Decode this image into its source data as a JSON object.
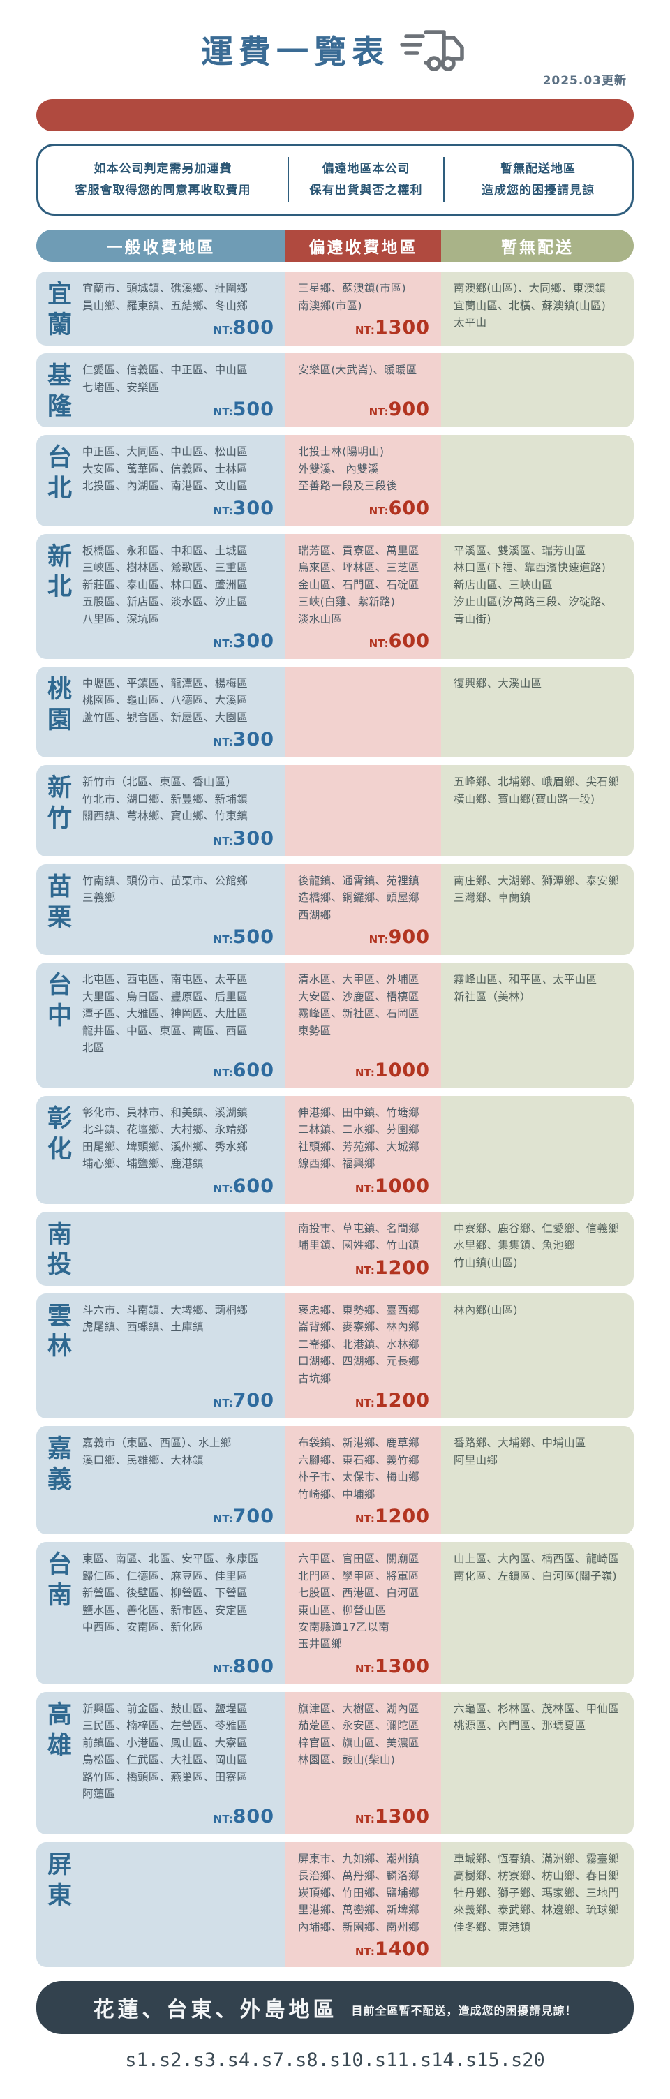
{
  "header": {
    "title": "運費一覽表",
    "updated": "2025.03更新",
    "truck_icon": "delivery-truck-icon"
  },
  "colors": {
    "title_blue": "#3a6b94",
    "divider_red": "#b04a3f",
    "band_general_blue": "#6f9cb5",
    "band_remote_red": "#b04a3f",
    "band_none_green": "#a9b388",
    "cell_general_bg": "#d2dfe8",
    "cell_remote_bg": "#f2d2cf",
    "cell_none_bg": "#dfe3d1",
    "price_blue": "#2e6b9e",
    "price_red": "#b23420",
    "footer_navy": "#33424e"
  },
  "notice": {
    "items": [
      {
        "line1": "如本公司判定需另加運費",
        "line2": "客服會取得您的同意再收取費用"
      },
      {
        "line1": "偏遠地區本公司",
        "line2": "保有出貨與否之權利"
      },
      {
        "line1": "暫無配送地區",
        "line2": "造成您的困擾請見諒"
      }
    ]
  },
  "table": {
    "columns": [
      {
        "label": "一般收費地區"
      },
      {
        "label": "偏遠收費地區"
      },
      {
        "label": "暫無配送"
      }
    ],
    "rows": [
      {
        "region": "宜蘭",
        "general": [
          "宜蘭市、頭城鎮、礁溪鄉、壯圍鄉",
          "員山鄉、羅東鎮、五結鄉、冬山鄉"
        ],
        "general_price": "800",
        "remote": [
          "三星鄉、蘇澳鎮(市區)",
          "南澳鄉(市區)"
        ],
        "remote_price": "1300",
        "no_delivery": [
          "南澳鄉(山區)、大同鄉、東澳鎮",
          "宜蘭山區、北橫、蘇澳鎮(山區)",
          "太平山"
        ]
      },
      {
        "region": "基隆",
        "general": [
          "仁愛區、信義區、中正區、中山區",
          "七堵區、安樂區"
        ],
        "general_price": "500",
        "remote": [
          "安樂區(大武崙)、暖暖區"
        ],
        "remote_price": "900",
        "no_delivery": []
      },
      {
        "region": "台北",
        "general": [
          "中正區、大同區、中山區、松山區",
          "大安區、萬華區、信義區、士林區",
          "北投區、內湖區、南港區、文山區"
        ],
        "general_price": "300",
        "remote": [
          "北投士林(陽明山)",
          "外雙溪、 內雙溪",
          "至善路一段及三段後"
        ],
        "remote_price": "600",
        "no_delivery": []
      },
      {
        "region": "新北",
        "general": [
          "板橋區、永和區、中和區、土城區",
          "三峽區、樹林區、鶯歌區、三重區",
          "新莊區、泰山區、林口區、蘆洲區",
          "五股區、新店區、淡水區、汐止區",
          "八里區、深坑區"
        ],
        "general_price": "300",
        "remote": [
          "瑞芳區、貢寮區、萬里區",
          "烏來區、坪林區、三芝區",
          "金山區、石門區、石碇區",
          "三峽(白雞、紫新路)",
          "淡水山區"
        ],
        "remote_price": "600",
        "no_delivery": [
          "平溪區、雙溪區、瑞芳山區",
          "林口區(下福、靠西濱快速道路)",
          "新店山區、三峽山區",
          "汐止山區(汐萬路三段、汐碇路、青山街)"
        ]
      },
      {
        "region": "桃園",
        "general": [
          "中壢區、平鎮區、龍潭區、楊梅區",
          "桃園區、龜山區、八德區、大溪區",
          "蘆竹區、觀音區、新屋區、大園區"
        ],
        "general_price": "300",
        "remote": [],
        "remote_price": null,
        "no_delivery": [
          "復興鄉、大溪山區"
        ]
      },
      {
        "region": "新竹",
        "general": [
          "新竹市（北區、東區、香山區）",
          "竹北市、湖口鄉、新豐鄉、新埔鎮",
          "關西鎮、芎林鄉、寶山鄉、竹東鎮"
        ],
        "general_price": "300",
        "remote": [],
        "remote_price": null,
        "no_delivery": [
          "五峰鄉、北埔鄉、峨眉鄉、尖石鄉",
          "橫山鄉、寶山鄉(寶山路一段)"
        ]
      },
      {
        "region": "苗栗",
        "general": [
          "竹南鎮、頭份市、苗栗市、公館鄉",
          "三義鄉"
        ],
        "general_price": "500",
        "remote": [
          "後龍鎮、通霄鎮、苑裡鎮",
          "造橋鄉、銅鑼鄉、頭屋鄉",
          "西湖鄉"
        ],
        "remote_price": "900",
        "no_delivery": [
          "南庄鄉、大湖鄉、獅潭鄉、泰安鄉",
          "三灣鄉、卓蘭鎮"
        ]
      },
      {
        "region": "台中",
        "general": [
          "北屯區、西屯區、南屯區、太平區",
          "大里區、烏日區、豐原區、后里區",
          "潭子區、大雅區、神岡區、大肚區",
          "龍井區、中區、東區、南區、西區",
          "北區"
        ],
        "general_price": "600",
        "remote": [
          "清水區、大甲區、外埔區",
          "大安區、沙鹿區、梧棲區",
          "霧峰區、新社區、石岡區",
          "東勢區"
        ],
        "remote_price": "1000",
        "no_delivery": [
          "霧峰山區、和平區、太平山區",
          "新社區（美林）"
        ]
      },
      {
        "region": "彰化",
        "general": [
          "彰化市、員林市、和美鎮、溪湖鎮",
          "北斗鎮、花壇鄉、大村鄉、永靖鄉",
          "田尾鄉、埤頭鄉、溪州鄉、秀水鄉",
          "埔心鄉、埔鹽鄉、鹿港鎮"
        ],
        "general_price": "600",
        "remote": [
          "伸港鄉、田中鎮、竹塘鄉",
          "二林鎮、二水鄉、芬園鄉",
          "社頭鄉、芳苑鄉、大城鄉",
          "線西鄉、福興鄉"
        ],
        "remote_price": "1000",
        "no_delivery": []
      },
      {
        "region": "南投",
        "general": [],
        "general_price": null,
        "remote": [
          "南投市、草屯鎮、名間鄉",
          "埔里鎮、國姓鄉、竹山鎮"
        ],
        "remote_price": "1200",
        "no_delivery": [
          "中寮鄉、鹿谷鄉、仁愛鄉、信義鄉",
          "水里鄉、集集鎮、魚池鄉",
          "竹山鎮(山區)"
        ]
      },
      {
        "region": "雲林",
        "general": [
          "斗六市、斗南鎮、大埤鄉、莿桐鄉",
          "虎尾鎮、西螺鎮、土庫鎮"
        ],
        "general_price": "700",
        "remote": [
          "褒忠鄉、東勢鄉、臺西鄉",
          "崙背鄉、麥寮鄉、林內鄉",
          "二崙鄉、北港鎮、水林鄉",
          "口湖鄉、四湖鄉、元長鄉",
          "古坑鄉"
        ],
        "remote_price": "1200",
        "no_delivery": [
          "林內鄉(山區)"
        ]
      },
      {
        "region": "嘉義",
        "general": [
          "嘉義市（東區、西區）、水上鄉",
          "溪口鄉、民雄鄉、大林鎮"
        ],
        "general_price": "700",
        "remote": [
          "布袋鎮、新港鄉、鹿草鄉",
          "六腳鄉、東石鄉、義竹鄉",
          "朴子市、太保市、梅山鄉",
          "竹崎鄉、中埔鄉"
        ],
        "remote_price": "1200",
        "no_delivery": [
          "番路鄉、大埔鄉、中埔山區",
          "阿里山鄉"
        ]
      },
      {
        "region": "台南",
        "general": [
          "東區、南區、北區、安平區、永康區",
          "歸仁區、仁德區、麻豆區、佳里區",
          "新營區、後壁區、柳營區、下營區",
          "鹽水區、善化區、新市區、安定區",
          "中西區、安南區、新化區"
        ],
        "general_price": "800",
        "remote": [
          "六甲區、官田區、關廟區",
          "北門區、學甲區、將軍區",
          "七股區、西港區、白河區",
          "東山區、柳營山區",
          "安南縣道17乙以南",
          "玉井區鄉"
        ],
        "remote_price": "1300",
        "no_delivery": [
          "山上區、大內區、楠西區、龍崎區",
          "南化區、左鎮區、白河區(關子嶺)"
        ]
      },
      {
        "region": "高雄",
        "general": [
          "新興區、前金區、鼓山區、鹽埕區",
          "三民區、楠梓區、左營區、苓雅區",
          "前鎮區、小港區、鳳山區、大寮區",
          "鳥松區、仁武區、大社區、岡山區",
          "路竹區、橋頭區、燕巢區、田寮區",
          "阿蓮區"
        ],
        "general_price": "800",
        "remote": [
          "旗津區、大樹區、湖內區",
          "茄萣區、永安區、彌陀區",
          "梓官區、旗山區、美濃區",
          "林園區、鼓山(柴山)"
        ],
        "remote_price": "1300",
        "no_delivery": [
          "六龜區、杉林區、茂林區、甲仙區",
          "桃源區、內門區、那瑪夏區"
        ]
      },
      {
        "region": "屏東",
        "general": [],
        "general_price": null,
        "remote": [
          "屏東市、九如鄉、潮州鎮",
          "長治鄉、萬丹鄉、麟洛鄉",
          "崁頂鄉、竹田鄉、鹽埔鄉",
          "里港鄉、萬巒鄉、新埤鄉",
          "內埔鄉、新園鄉、南州鄉"
        ],
        "remote_price": "1400",
        "no_delivery": [
          "車城鄉、恆春鎮、滿洲鄉、霧臺鄉",
          "高樹鄉、枋寮鄉、枋山鄉、春日鄉",
          "牡丹鄉、獅子鄉、瑪家鄉、三地門",
          "來義鄉、泰武鄉、林邊鄉、琉球鄉",
          "佳冬鄉、東港鎮"
        ]
      }
    ]
  },
  "footer": {
    "title": "花蓮、台東、外島地區",
    "note": "目前全區暫不配送，造成您的困擾請見諒！"
  },
  "bottom_code": "s1.s2.s3.s4.s7.s8.s10.s11.s14.s15.s20"
}
